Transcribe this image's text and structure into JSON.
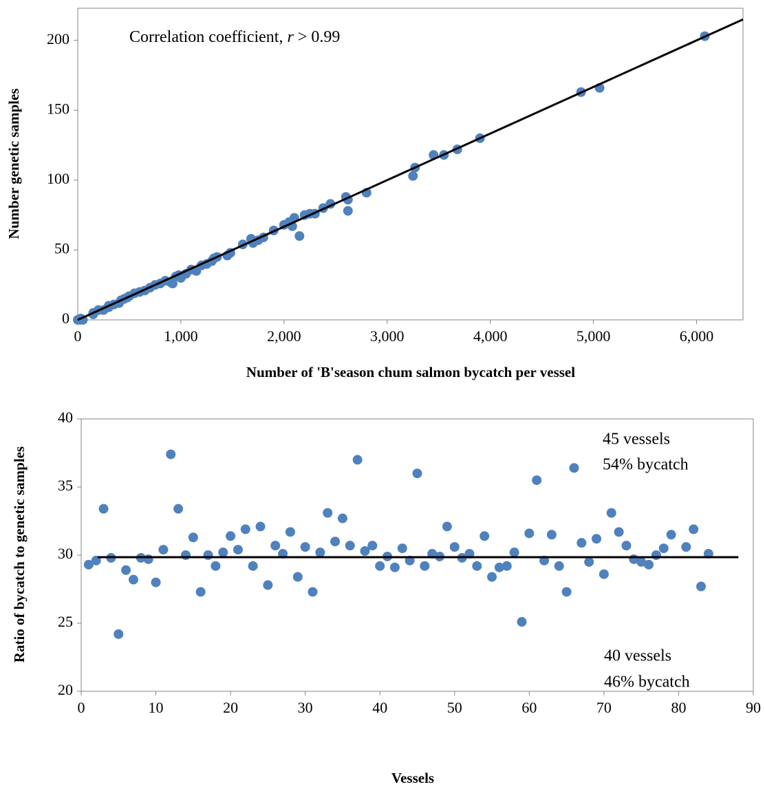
{
  "chart_data": [
    {
      "type": "scatter",
      "annotation_parts": [
        "Correlation coefficient, ",
        "r",
        " > 0.99"
      ],
      "x_label": "Number of 'B'season chum salmon bycatch per vessel",
      "y_label": "Number genetic samples",
      "color": "#4f81bd",
      "x": [
        0,
        20,
        30,
        50,
        150,
        150,
        200,
        250,
        300,
        300,
        350,
        400,
        420,
        450,
        480,
        500,
        550,
        600,
        650,
        700,
        750,
        800,
        850,
        900,
        920,
        950,
        980,
        1000,
        1050,
        1100,
        1150,
        1200,
        1250,
        1300,
        1320,
        1350,
        1450,
        1480,
        1600,
        1680,
        1700,
        1750,
        1800,
        1900,
        2000,
        2050,
        2080,
        2100,
        2150,
        2200,
        2250,
        2300,
        2380,
        2450,
        2600,
        2620,
        2620,
        2800,
        3250,
        3270,
        3450,
        3550,
        3680,
        3900,
        4880,
        5060,
        6080
      ],
      "values": [
        0,
        0,
        1,
        0,
        4,
        5,
        7,
        7,
        9,
        10,
        11,
        12,
        14,
        15,
        16,
        17,
        19,
        20,
        21,
        23,
        25,
        26,
        28,
        27,
        26,
        31,
        32,
        30,
        33,
        36,
        35,
        39,
        40,
        42,
        44,
        45,
        46,
        48,
        54,
        58,
        55,
        57,
        59,
        64,
        68,
        70,
        67,
        73,
        60,
        75,
        76,
        76,
        80,
        83,
        88,
        86,
        78,
        91,
        103,
        109,
        118,
        118,
        122,
        130,
        163,
        166,
        203
      ],
      "trendline": {
        "x": [
          0,
          6450
        ],
        "y": [
          0,
          215
        ]
      },
      "xlim": [
        0,
        6450
      ],
      "ylim": [
        0,
        223
      ],
      "xticks": [
        0,
        {
          "value": 1000,
          "label": "1,000"
        },
        {
          "value": 2000,
          "label": "2,000"
        },
        {
          "value": 3000,
          "label": "3,000"
        },
        {
          "value": 4000,
          "label": "4,000"
        },
        {
          "value": 5000,
          "label": "5,000"
        },
        {
          "value": 6000,
          "label": "6,000"
        }
      ],
      "yticks": [
        0,
        50,
        100,
        150,
        200
      ]
    },
    {
      "type": "scatter",
      "annotation_parts": [
        "45 vessels",
        "54% bycatch",
        "40 vessels",
        "46% bycatch"
      ],
      "x_label": "Vessels",
      "y_label": "Ratio of bycatch to genetic samples",
      "color": "#4f81bd",
      "x": [
        1,
        2,
        3,
        4,
        5,
        6,
        7,
        8,
        9,
        10,
        11,
        12,
        13,
        14,
        15,
        16,
        17,
        18,
        19,
        20,
        21,
        22,
        23,
        24,
        25,
        26,
        27,
        28,
        29,
        30,
        31,
        32,
        33,
        34,
        35,
        36,
        37,
        38,
        39,
        40,
        41,
        42,
        43,
        44,
        45,
        46,
        47,
        48,
        49,
        50,
        51,
        52,
        53,
        54,
        55,
        56,
        57,
        58,
        59,
        60,
        61,
        62,
        63,
        64,
        65,
        66,
        67,
        68,
        69,
        70,
        71,
        72,
        73,
        74,
        75,
        76,
        77,
        78,
        79,
        81,
        82,
        83,
        84
      ],
      "values": [
        29.3,
        29.6,
        33.4,
        29.8,
        24.2,
        28.9,
        28.2,
        29.8,
        29.7,
        28.0,
        30.4,
        37.4,
        33.4,
        30.0,
        31.3,
        27.3,
        30.0,
        29.2,
        30.2,
        31.4,
        30.4,
        31.9,
        29.2,
        32.1,
        27.8,
        30.7,
        30.1,
        31.7,
        28.4,
        30.6,
        27.3,
        30.2,
        33.1,
        31.0,
        32.7,
        30.7,
        37.0,
        30.3,
        30.7,
        29.2,
        29.9,
        29.1,
        30.5,
        29.6,
        36.0,
        29.2,
        30.1,
        29.9,
        32.1,
        30.6,
        29.8,
        30.1,
        29.2,
        31.4,
        28.4,
        29.1,
        29.2,
        30.2,
        25.1,
        31.6,
        35.5,
        29.6,
        31.5,
        29.2,
        27.3,
        36.4,
        30.9,
        29.5,
        31.2,
        28.6,
        33.1,
        31.7,
        30.7,
        29.7,
        29.5,
        29.3,
        30.0,
        30.5,
        31.5,
        30.6,
        31.9,
        27.7,
        30.1
      ],
      "trendline": {
        "x": [
          2.2,
          88
        ],
        "y": [
          29.85,
          29.85
        ]
      },
      "xlim": [
        0,
        90
      ],
      "ylim": [
        20,
        40
      ],
      "xticks": [
        0,
        10,
        20,
        30,
        40,
        50,
        60,
        70,
        80,
        90
      ],
      "yticks": [
        20,
        25,
        30,
        35,
        40
      ]
    }
  ]
}
